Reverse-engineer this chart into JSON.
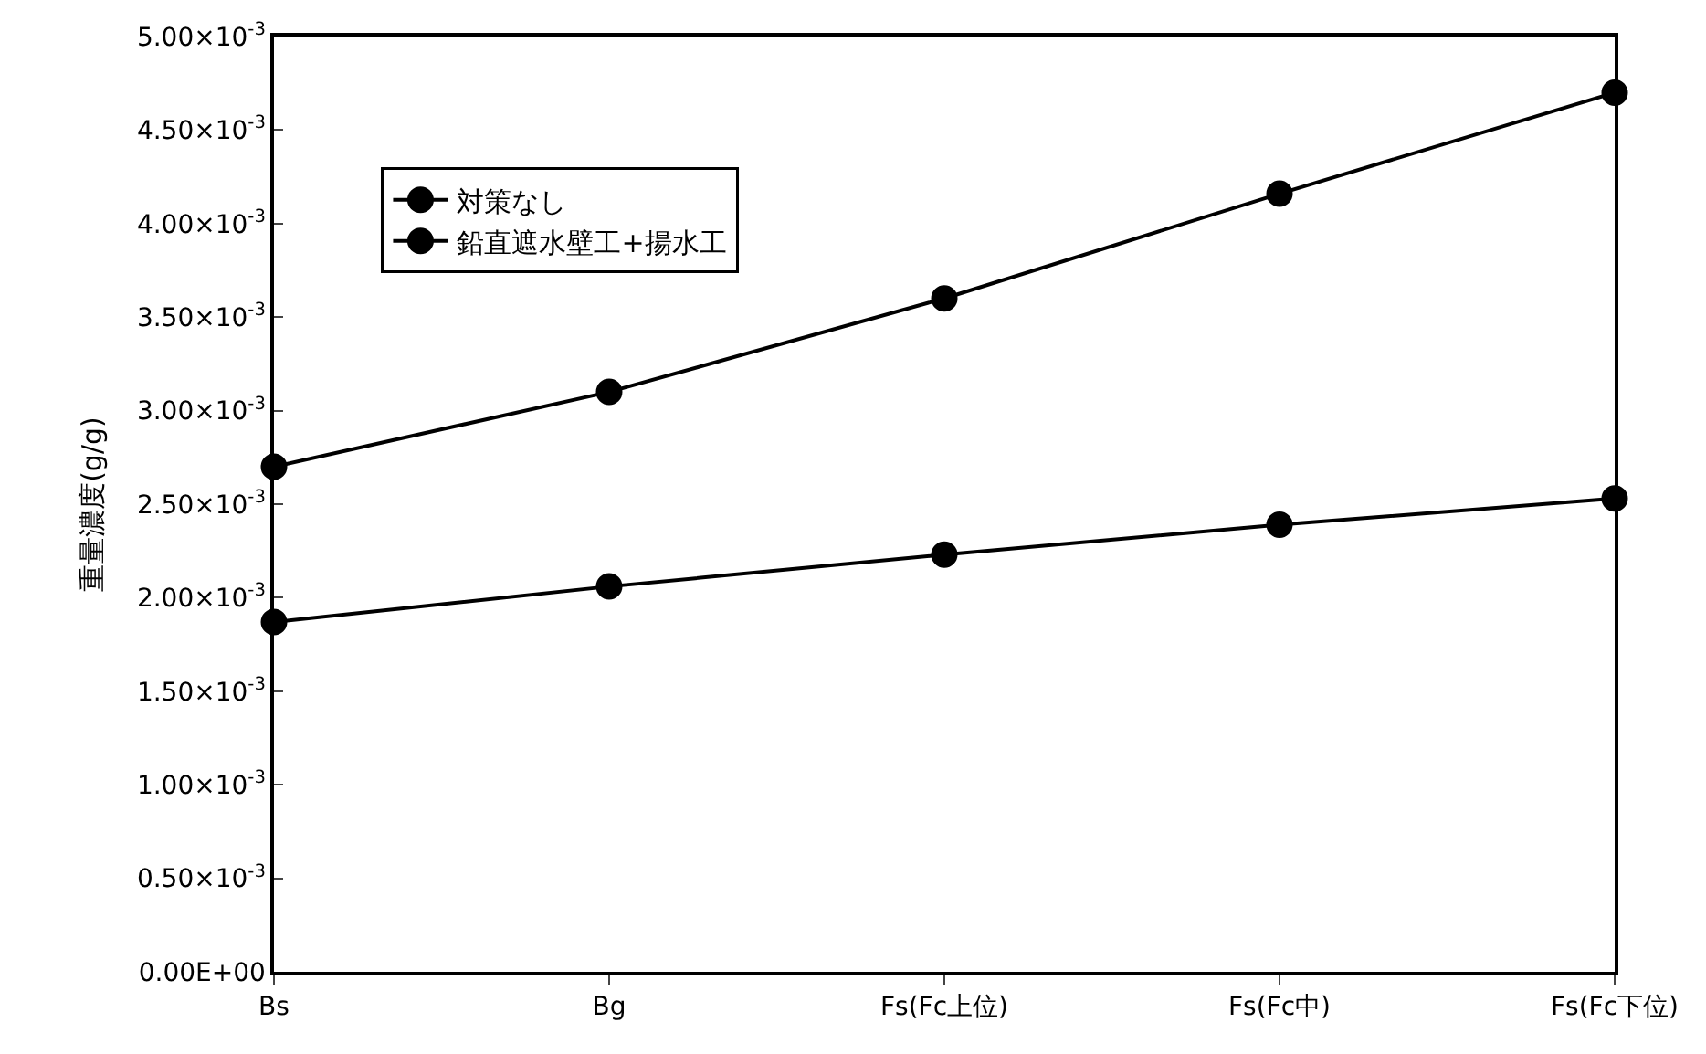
{
  "chart_data": {
    "type": "line",
    "ylabel": "重量濃度(g/g)",
    "categories": [
      "Bs",
      "Bg",
      "Fs(Fc上位)",
      "Fs(Fc中)",
      "Fs(Fc下位)"
    ],
    "series": [
      {
        "name": "対策なし",
        "color": "#000000",
        "values": [
          0.0027,
          0.0031,
          0.0036,
          0.00416,
          0.0047
        ]
      },
      {
        "name": "鉛直遮水壁工+揚水工",
        "color": "#000000",
        "values": [
          0.00187,
          0.00206,
          0.00223,
          0.00239,
          0.00253
        ]
      }
    ],
    "ylim": [
      0,
      0.005
    ],
    "yticks": [
      {
        "value": 0,
        "label": "0.00E+00"
      },
      {
        "value": 0.0005,
        "label": "0.50×10$^{-3}$"
      },
      {
        "value": 0.001,
        "label": "1.00×10$^{-3}$"
      },
      {
        "value": 0.0015,
        "label": "1.50×10$^{-3}$"
      },
      {
        "value": 0.002,
        "label": "2.00×10$^{-3}$"
      },
      {
        "value": 0.0025,
        "label": "2.50×10$^{-3}$"
      },
      {
        "value": 0.003,
        "label": "3.00×10$^{-3}$"
      },
      {
        "value": 0.0035,
        "label": "3.50×10$^{-3}$"
      },
      {
        "value": 0.004,
        "label": "4.00×10$^{-3}$"
      },
      {
        "value": 0.0045,
        "label": "4.50×10$^{-3}$"
      },
      {
        "value": 0.005,
        "label": "5.00×10$^{-3}$"
      }
    ],
    "legend": "top left",
    "marker": "circle",
    "line_style": "solid"
  }
}
